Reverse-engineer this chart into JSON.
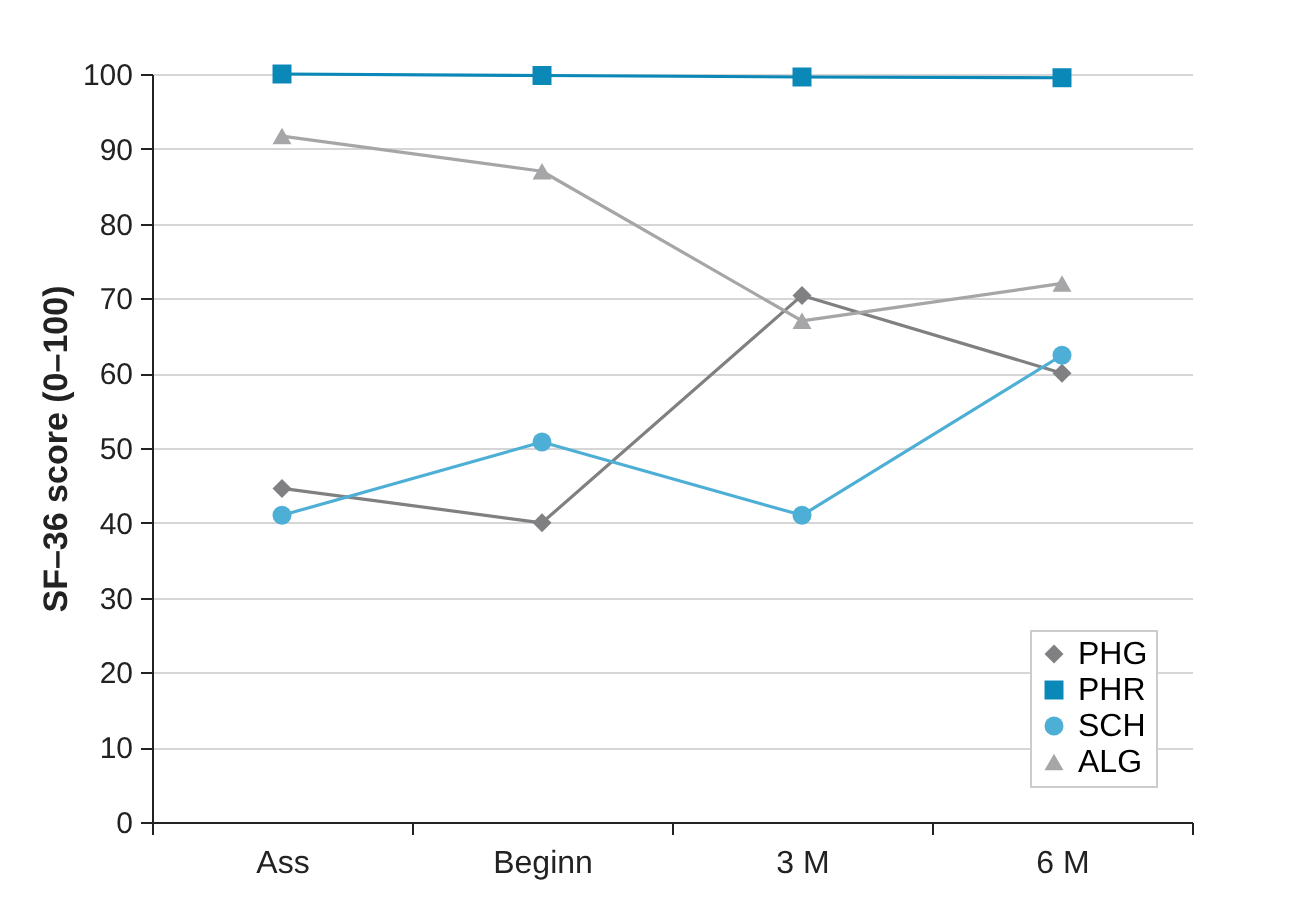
{
  "chart_data": {
    "type": "line",
    "ylabel": "SF–36 score (0–100)",
    "categories": [
      "Ass",
      "Beginn",
      "3 M",
      "6 M"
    ],
    "ylim": [
      0,
      100
    ],
    "yticks": [
      0,
      10,
      20,
      30,
      40,
      50,
      60,
      70,
      80,
      90,
      100
    ],
    "grid": "y",
    "legend": "bottom right",
    "line_style": "solid",
    "series": [
      {
        "name": "PHG",
        "color": "#808083",
        "marker": "diamond",
        "values": [
          44.6,
          40,
          70.4,
          60
        ]
      },
      {
        "name": "PHR",
        "color": "#0a88b8",
        "marker": "square",
        "values": [
          100,
          99.8,
          99.6,
          99.5
        ]
      },
      {
        "name": "SCH",
        "color": "#4eafd6",
        "marker": "circle",
        "values": [
          41,
          50.8,
          41,
          62.4
        ]
      },
      {
        "name": "ALG",
        "color": "#a6a6a8",
        "marker": "triangle",
        "values": [
          91.7,
          87,
          67,
          72
        ]
      }
    ]
  }
}
